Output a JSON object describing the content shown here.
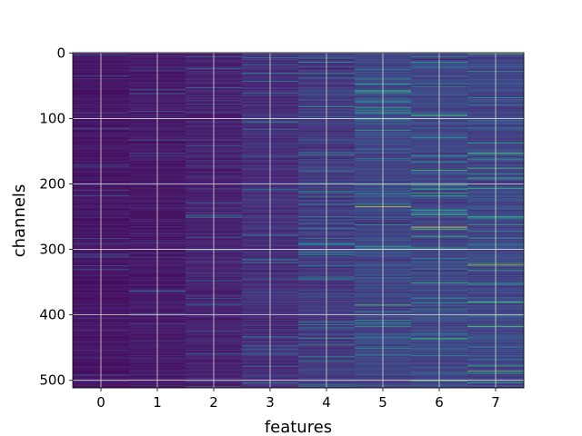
{
  "chart_data": {
    "type": "heatmap",
    "title": "",
    "xlabel": "features",
    "ylabel": "channels",
    "x_categories": [
      0,
      1,
      2,
      3,
      4,
      5,
      6,
      7
    ],
    "xlim": [
      -0.5,
      7.5
    ],
    "ylim": [
      511.5,
      -0.5
    ],
    "n_rows": 512,
    "x_ticks": [
      0,
      1,
      2,
      3,
      4,
      5,
      6,
      7
    ],
    "y_ticks": [
      0,
      100,
      200,
      300,
      400,
      500
    ],
    "grid": true,
    "colormap": "viridis",
    "column_intensity": [
      0.06,
      0.07,
      0.1,
      0.14,
      0.17,
      0.22,
      0.22,
      0.22
    ],
    "highlights": [
      {
        "feature": 4,
        "channel": 82,
        "value": 0.55
      },
      {
        "feature": 4,
        "channel": 213,
        "value": 0.45
      },
      {
        "feature": 4,
        "channel": 268,
        "value": 0.45
      },
      {
        "feature": 4,
        "channel": 345,
        "value": 0.5
      },
      {
        "feature": 5,
        "channel": 61,
        "value": 0.55
      },
      {
        "feature": 5,
        "channel": 235,
        "value": 0.95
      },
      {
        "feature": 5,
        "channel": 260,
        "value": 0.02
      },
      {
        "feature": 5,
        "channel": 385,
        "value": 0.75
      },
      {
        "feature": 5,
        "channel": 435,
        "value": 0.45
      },
      {
        "feature": 6,
        "channel": 10,
        "value": 0.02
      },
      {
        "feature": 6,
        "channel": 220,
        "value": 0.4
      },
      {
        "feature": 6,
        "channel": 266,
        "value": 1.0
      },
      {
        "feature": 6,
        "channel": 330,
        "value": 0.5
      },
      {
        "feature": 7,
        "channel": 68,
        "value": 0.5
      },
      {
        "feature": 7,
        "channel": 137,
        "value": 0.55
      },
      {
        "feature": 7,
        "channel": 262,
        "value": 0.6
      },
      {
        "feature": 7,
        "channel": 324,
        "value": 0.9
      },
      {
        "feature": 7,
        "channel": 402,
        "value": 0.5
      }
    ]
  }
}
